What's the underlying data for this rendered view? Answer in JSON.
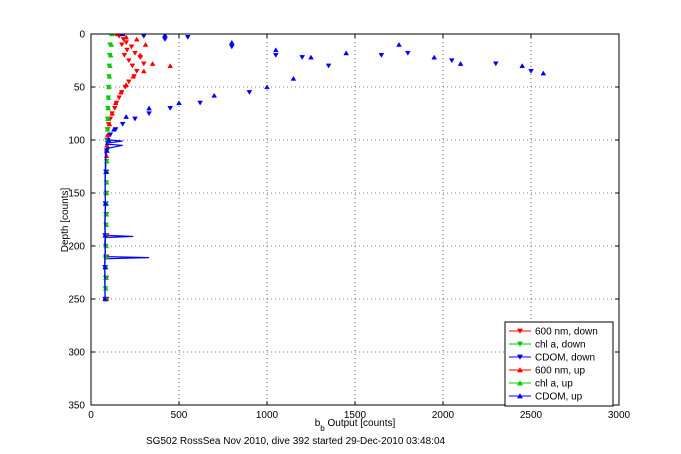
{
  "chart_data": {
    "type": "scatter",
    "caption": "SG502 RossSea Nov 2010, dive 392 started 29-Dec-2010 03:48:04",
    "xlabel_main": "b",
    "xlabel_sub": "b",
    "xlabel_rest": " Output [counts]",
    "ylabel": "Depth [counts]",
    "xlim": [
      0,
      3000
    ],
    "ylim": [
      0,
      350
    ],
    "y_reversed": true,
    "grid": true,
    "legend_position": "bottom-right",
    "xticks": [
      0,
      500,
      1000,
      1500,
      2000,
      2500,
      3000
    ],
    "yticks": [
      0,
      50,
      100,
      150,
      200,
      250,
      300,
      350
    ],
    "series": [
      {
        "name": "600 nm, down",
        "color": "#ff0000",
        "marker": "triangle-down",
        "points": [
          [
            160,
            2
          ],
          [
            185,
            5
          ],
          [
            200,
            8
          ],
          [
            175,
            10
          ],
          [
            230,
            12
          ],
          [
            205,
            15
          ],
          [
            250,
            18
          ],
          [
            190,
            20
          ],
          [
            280,
            22
          ],
          [
            215,
            25
          ],
          [
            300,
            28
          ],
          [
            235,
            30
          ],
          [
            260,
            35
          ],
          [
            245,
            40
          ],
          [
            215,
            45
          ],
          [
            195,
            50
          ],
          [
            175,
            55
          ],
          [
            160,
            60
          ],
          [
            145,
            65
          ],
          [
            135,
            70
          ],
          [
            120,
            75
          ],
          [
            110,
            80
          ],
          [
            100,
            85
          ],
          [
            95,
            90
          ],
          [
            95,
            100
          ],
          [
            90,
            110
          ],
          [
            90,
            130
          ],
          [
            88,
            150
          ],
          [
            88,
            170
          ],
          [
            90,
            190
          ],
          [
            90,
            210
          ],
          [
            88,
            230
          ],
          [
            90,
            250
          ]
        ]
      },
      {
        "name": "chl a, down",
        "color": "#00cc00",
        "marker": "triangle-down",
        "points": [
          [
            110,
            0
          ],
          [
            108,
            10
          ],
          [
            106,
            20
          ],
          [
            104,
            30
          ],
          [
            102,
            40
          ],
          [
            100,
            50
          ],
          [
            98,
            60
          ],
          [
            96,
            70
          ],
          [
            94,
            80
          ],
          [
            92,
            90
          ],
          [
            90,
            100
          ],
          [
            90,
            110
          ],
          [
            88,
            120
          ],
          [
            88,
            130
          ],
          [
            87,
            140
          ],
          [
            86,
            150
          ],
          [
            86,
            160
          ],
          [
            85,
            170
          ],
          [
            85,
            180
          ],
          [
            84,
            190
          ],
          [
            84,
            200
          ],
          [
            84,
            210
          ],
          [
            83,
            220
          ],
          [
            83,
            230
          ],
          [
            82,
            240
          ],
          [
            82,
            250
          ]
        ]
      },
      {
        "name": "CDOM, down",
        "color": "#0000ff",
        "marker": "triangle-down",
        "points": [
          [
            150,
            0
          ],
          [
            300,
            2
          ],
          [
            420,
            5
          ],
          [
            550,
            3
          ],
          [
            800,
            12
          ],
          [
            1050,
            20
          ],
          [
            1200,
            22
          ],
          [
            1350,
            30
          ],
          [
            1650,
            20
          ],
          [
            1800,
            18
          ],
          [
            2050,
            25
          ],
          [
            2300,
            28
          ],
          [
            2500,
            35
          ],
          [
            900,
            55
          ],
          [
            620,
            65
          ],
          [
            450,
            70
          ],
          [
            330,
            75
          ],
          [
            250,
            80
          ],
          [
            180,
            85
          ],
          [
            140,
            90
          ],
          [
            110,
            95
          ],
          [
            95,
            100
          ],
          [
            90,
            110
          ],
          [
            85,
            130
          ],
          [
            82,
            160
          ],
          [
            80,
            190
          ],
          [
            80,
            220
          ],
          [
            80,
            250
          ]
        ],
        "line_points": [
          [
            95,
            95
          ],
          [
            100,
            100
          ],
          [
            180,
            101
          ],
          [
            90,
            103
          ],
          [
            95,
            106
          ],
          [
            80,
            110
          ],
          [
            85,
            120
          ],
          [
            80,
            140
          ],
          [
            82,
            160
          ],
          [
            78,
            180
          ],
          [
            80,
            190
          ],
          [
            240,
            191
          ],
          [
            80,
            192
          ],
          [
            78,
            200
          ],
          [
            82,
            206
          ],
          [
            75,
            210
          ],
          [
            330,
            211
          ],
          [
            80,
            212
          ],
          [
            78,
            230
          ],
          [
            80,
            250
          ]
        ]
      },
      {
        "name": "600 nm, up",
        "color": "#ff0000",
        "marker": "triangle-up",
        "points": [
          [
            150,
            0
          ],
          [
            200,
            3
          ],
          [
            260,
            5
          ],
          [
            310,
            10
          ],
          [
            280,
            20
          ],
          [
            350,
            28
          ],
          [
            450,
            30
          ],
          [
            300,
            35
          ],
          [
            240,
            40
          ],
          [
            200,
            48
          ],
          [
            170,
            55
          ],
          [
            140,
            65
          ],
          [
            120,
            75
          ],
          [
            105,
            85
          ],
          [
            95,
            95
          ],
          [
            90,
            105
          ],
          [
            88,
            115
          ],
          [
            88,
            130
          ],
          [
            86,
            150
          ],
          [
            86,
            170
          ],
          [
            88,
            190
          ],
          [
            88,
            210
          ],
          [
            86,
            230
          ],
          [
            88,
            250
          ]
        ]
      },
      {
        "name": "chl a, up",
        "color": "#00cc00",
        "marker": "triangle-up",
        "points": [
          [
            120,
            0
          ],
          [
            116,
            10
          ],
          [
            112,
            20
          ],
          [
            108,
            30
          ],
          [
            105,
            40
          ],
          [
            102,
            50
          ],
          [
            100,
            60
          ],
          [
            98,
            70
          ],
          [
            96,
            80
          ],
          [
            94,
            90
          ],
          [
            92,
            100
          ],
          [
            92,
            110
          ],
          [
            90,
            120
          ],
          [
            90,
            130
          ],
          [
            89,
            140
          ],
          [
            88,
            150
          ],
          [
            88,
            160
          ],
          [
            87,
            170
          ],
          [
            87,
            180
          ],
          [
            86,
            190
          ],
          [
            86,
            200
          ],
          [
            86,
            210
          ],
          [
            85,
            220
          ],
          [
            85,
            230
          ],
          [
            84,
            240
          ],
          [
            84,
            250
          ]
        ]
      },
      {
        "name": "CDOM, up",
        "color": "#0000ff",
        "marker": "triangle-up",
        "points": [
          [
            180,
            0
          ],
          [
            420,
            1
          ],
          [
            800,
            8
          ],
          [
            1050,
            15
          ],
          [
            1250,
            22
          ],
          [
            1450,
            18
          ],
          [
            1750,
            10
          ],
          [
            1950,
            22
          ],
          [
            2100,
            28
          ],
          [
            2450,
            30
          ],
          [
            2570,
            37
          ],
          [
            1150,
            42
          ],
          [
            1000,
            50
          ],
          [
            700,
            58
          ],
          [
            500,
            65
          ],
          [
            330,
            70
          ],
          [
            200,
            78
          ],
          [
            130,
            90
          ],
          [
            100,
            100
          ],
          [
            90,
            110
          ],
          [
            85,
            130
          ],
          [
            82,
            160
          ],
          [
            80,
            190
          ],
          [
            80,
            220
          ],
          [
            80,
            250
          ]
        ],
        "line_points": [
          [
            100,
            98
          ],
          [
            85,
            104
          ],
          [
            180,
            105
          ],
          [
            88,
            108
          ],
          [
            82,
            120
          ],
          [
            80,
            140
          ],
          [
            82,
            160
          ],
          [
            80,
            180
          ],
          [
            82,
            195
          ],
          [
            80,
            205
          ],
          [
            78,
            215
          ],
          [
            80,
            230
          ],
          [
            80,
            250
          ]
        ]
      }
    ]
  }
}
